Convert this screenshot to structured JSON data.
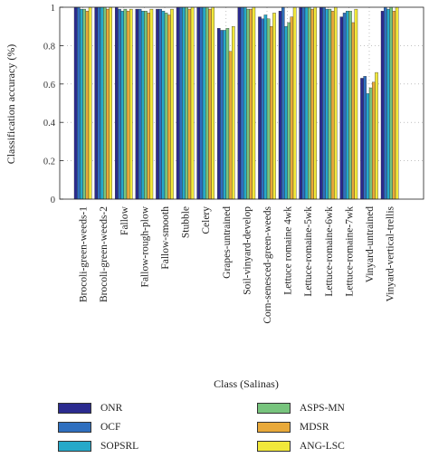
{
  "chart_data": {
    "type": "bar",
    "title": "",
    "xlabel": "Class (Salinas)",
    "ylabel": "Classification accuracy (%)",
    "ylim": [
      0,
      1
    ],
    "yticks": [
      "0",
      "0.2",
      "0.4",
      "0.6",
      "0.8",
      "1"
    ],
    "grid": "dotted vertical",
    "legend_position": "bottom",
    "categories": [
      "Brocoli-green-weeds-1",
      "Brocoli-green-weeds-2",
      "Fallow",
      "Fallow-rough-plow",
      "Fallow-smooth",
      "Stubble",
      "Celery",
      "Grapes-untrained",
      "Soil-vinyard-develop",
      "Corn-senesced-green-weeds",
      "Lettuce romaine 4wk",
      "Lettuce-romaine-5wk",
      "Lettuce-romaine-6wk",
      "Lettuce-romaine-7wk",
      "Vinyard-untrained",
      "Vinyard-vertical-trellis"
    ],
    "series": [
      {
        "name": "ONR",
        "color": "#2b2b8f",
        "values": [
          1.0,
          1.0,
          1.0,
          0.99,
          0.99,
          1.0,
          1.0,
          0.89,
          1.0,
          0.95,
          0.98,
          1.0,
          1.0,
          0.95,
          0.63,
          0.98
        ]
      },
      {
        "name": "OCF",
        "color": "#2f6fbf",
        "values": [
          1.0,
          1.0,
          0.99,
          0.99,
          0.99,
          1.0,
          1.0,
          0.88,
          1.0,
          0.94,
          1.0,
          1.0,
          1.0,
          0.97,
          0.64,
          1.0
        ]
      },
      {
        "name": "SOPSRL",
        "color": "#26a9c9",
        "values": [
          0.99,
          1.0,
          0.98,
          0.98,
          0.98,
          1.0,
          1.0,
          0.88,
          1.0,
          0.96,
          0.9,
          1.0,
          0.99,
          0.98,
          0.55,
          0.99
        ]
      },
      {
        "name": "ASPS-MN",
        "color": "#77c47d",
        "values": [
          0.99,
          1.0,
          0.99,
          0.98,
          0.97,
          1.0,
          1.0,
          0.89,
          0.99,
          0.94,
          0.92,
          1.0,
          0.99,
          0.98,
          0.58,
          1.0
        ]
      },
      {
        "name": "MDSR",
        "color": "#e8a93a",
        "values": [
          0.98,
          0.99,
          0.98,
          0.97,
          0.96,
          0.99,
          0.99,
          0.77,
          0.99,
          0.9,
          0.95,
          0.99,
          0.98,
          0.92,
          0.61,
          0.98
        ]
      },
      {
        "name": "ANG-LSC",
        "color": "#f1e83a",
        "values": [
          1.0,
          1.0,
          0.99,
          0.99,
          0.99,
          1.0,
          1.0,
          0.9,
          1.0,
          0.97,
          1.0,
          1.0,
          1.0,
          0.99,
          0.66,
          1.0
        ]
      }
    ]
  }
}
